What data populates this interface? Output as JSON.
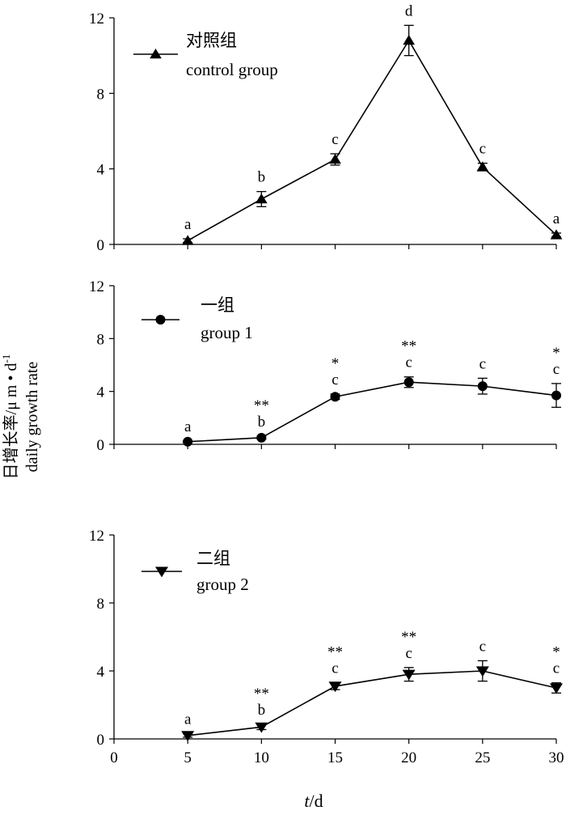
{
  "chart_data": {
    "type": "line",
    "y_axis_label_cn": "日增长率/μ m • d",
    "y_axis_label_sup": "-1",
    "y_axis_label_en": "daily growth rate",
    "x_axis_label_italic": "t",
    "x_axis_label_unit": "/d",
    "xlim": [
      0,
      30
    ],
    "x_ticks": [
      "0",
      "5",
      "10",
      "15",
      "20",
      "25",
      "30"
    ],
    "panels": [
      {
        "legend_cn": "对照组",
        "legend_en": "control group",
        "marker": "triangle-up",
        "ylim": [
          0,
          12
        ],
        "y_ticks": [
          "0",
          "4",
          "8",
          "12"
        ],
        "x": [
          5,
          10,
          15,
          20,
          25,
          30
        ],
        "values": [
          0.2,
          2.4,
          4.5,
          10.8,
          4.1,
          0.5
        ],
        "errors": [
          0.1,
          0.4,
          0.3,
          0.8,
          0.2,
          0.1
        ],
        "letters": [
          "a",
          "b",
          "c",
          "d",
          "c",
          "a"
        ],
        "stars": [
          "",
          "",
          "",
          "",
          "",
          ""
        ]
      },
      {
        "legend_cn": "一组",
        "legend_en": "group 1",
        "marker": "circle",
        "ylim": [
          0,
          12
        ],
        "y_ticks": [
          "0",
          "4",
          "8",
          "12"
        ],
        "x": [
          5,
          10,
          15,
          20,
          25,
          30
        ],
        "values": [
          0.2,
          0.5,
          3.6,
          4.7,
          4.4,
          3.7
        ],
        "errors": [
          0.05,
          0.1,
          0.2,
          0.4,
          0.6,
          0.9
        ],
        "letters": [
          "a",
          "b",
          "c",
          "c",
          "c",
          "c"
        ],
        "stars": [
          "",
          "**",
          "*",
          "**",
          "",
          "*"
        ]
      },
      {
        "legend_cn": "二组",
        "legend_en": "group 2",
        "marker": "triangle-down",
        "ylim": [
          0,
          12
        ],
        "y_ticks": [
          "0",
          "4",
          "8",
          "12"
        ],
        "x": [
          5,
          10,
          15,
          20,
          25,
          30
        ],
        "values": [
          0.2,
          0.7,
          3.1,
          3.8,
          4.0,
          3.0
        ],
        "errors": [
          0.1,
          0.15,
          0.2,
          0.4,
          0.6,
          0.3
        ],
        "letters": [
          "a",
          "b",
          "c",
          "c",
          "c",
          "c"
        ],
        "stars": [
          "",
          "**",
          "**",
          "**",
          "",
          "*"
        ]
      }
    ]
  }
}
